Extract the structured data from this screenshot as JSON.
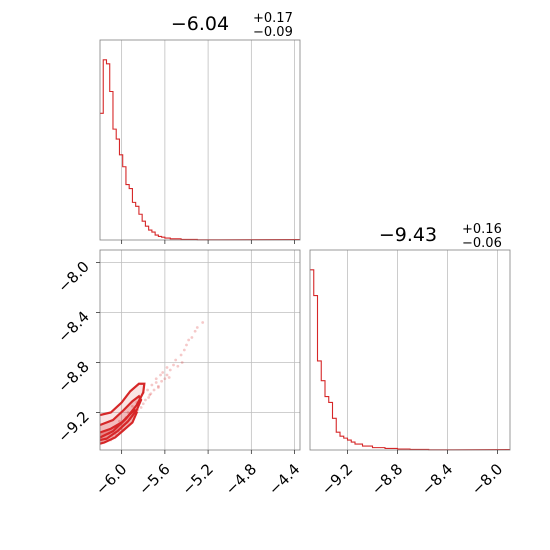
{
  "chart_data": [
    {
      "type": "histogram",
      "panel": "top-left",
      "title": {
        "value": "−6.04",
        "upper": "+0.17",
        "lower": "−0.09"
      },
      "xlim": [
        -6.2,
        -4.35
      ],
      "x_ticks": [
        -6.0,
        -5.6,
        -5.2,
        -4.8,
        -4.4
      ],
      "tick_labels_shown": false,
      "color": "#d62728",
      "bins": [
        {
          "x0": -6.2,
          "x1": -6.17,
          "count": 0.64
        },
        {
          "x0": -6.17,
          "x1": -6.14,
          "count": 0.91
        },
        {
          "x0": -6.14,
          "x1": -6.11,
          "count": 0.89
        },
        {
          "x0": -6.11,
          "x1": -6.08,
          "count": 0.75
        },
        {
          "x0": -6.08,
          "x1": -6.05,
          "count": 0.56
        },
        {
          "x0": -6.05,
          "x1": -6.02,
          "count": 0.51
        },
        {
          "x0": -6.02,
          "x1": -5.99,
          "count": 0.43
        },
        {
          "x0": -5.99,
          "x1": -5.96,
          "count": 0.37
        },
        {
          "x0": -5.96,
          "x1": -5.93,
          "count": 0.28
        },
        {
          "x0": -5.93,
          "x1": -5.9,
          "count": 0.26
        },
        {
          "x0": -5.9,
          "x1": -5.87,
          "count": 0.19
        },
        {
          "x0": -5.87,
          "x1": -5.84,
          "count": 0.17
        },
        {
          "x0": -5.84,
          "x1": -5.81,
          "count": 0.13
        },
        {
          "x0": -5.81,
          "x1": -5.78,
          "count": 0.095
        },
        {
          "x0": -5.78,
          "x1": -5.75,
          "count": 0.07
        },
        {
          "x0": -5.75,
          "x1": -5.72,
          "count": 0.05
        },
        {
          "x0": -5.72,
          "x1": -5.69,
          "count": 0.04
        },
        {
          "x0": -5.69,
          "x1": -5.66,
          "count": 0.025
        },
        {
          "x0": -5.66,
          "x1": -5.63,
          "count": 0.018
        },
        {
          "x0": -5.63,
          "x1": -5.6,
          "count": 0.014
        },
        {
          "x0": -5.6,
          "x1": -5.55,
          "count": 0.01
        },
        {
          "x0": -5.55,
          "x1": -5.45,
          "count": 0.006
        },
        {
          "x0": -5.45,
          "x1": -5.3,
          "count": 0.003
        },
        {
          "x0": -5.3,
          "x1": -5.1,
          "count": 0.001
        }
      ]
    },
    {
      "type": "histogram",
      "panel": "bottom-right",
      "title": {
        "value": "−9.43",
        "upper": "+0.16",
        "lower": "−0.06"
      },
      "xlim": [
        -9.5,
        -7.9
      ],
      "x_ticks": [
        -9.2,
        -8.8,
        -8.4,
        -8.0
      ],
      "tick_labels": [
        "−9.2",
        "−8.8",
        "−8.4",
        "−8.0"
      ],
      "color": "#d62728",
      "bins": [
        {
          "x0": -9.5,
          "x1": -9.47,
          "count": 0.91
        },
        {
          "x0": -9.47,
          "x1": -9.44,
          "count": 0.78
        },
        {
          "x0": -9.44,
          "x1": -9.41,
          "count": 0.45
        },
        {
          "x0": -9.41,
          "x1": -9.38,
          "count": 0.35
        },
        {
          "x0": -9.38,
          "x1": -9.35,
          "count": 0.27
        },
        {
          "x0": -9.35,
          "x1": -9.32,
          "count": 0.24
        },
        {
          "x0": -9.32,
          "x1": -9.29,
          "count": 0.16
        },
        {
          "x0": -9.29,
          "x1": -9.26,
          "count": 0.09
        },
        {
          "x0": -9.26,
          "x1": -9.23,
          "count": 0.07
        },
        {
          "x0": -9.23,
          "x1": -9.2,
          "count": 0.06
        },
        {
          "x0": -9.2,
          "x1": -9.17,
          "count": 0.05
        },
        {
          "x0": -9.17,
          "x1": -9.14,
          "count": 0.04
        },
        {
          "x0": -9.14,
          "x1": -9.08,
          "count": 0.03
        },
        {
          "x0": -9.08,
          "x1": -9.0,
          "count": 0.02
        },
        {
          "x0": -9.0,
          "x1": -8.9,
          "count": 0.012
        },
        {
          "x0": -8.9,
          "x1": -8.8,
          "count": 0.008
        },
        {
          "x0": -8.8,
          "x1": -8.7,
          "count": 0.005
        },
        {
          "x0": -8.7,
          "x1": -8.55,
          "count": 0.003
        },
        {
          "x0": -8.55,
          "x1": -8.35,
          "count": 0.001
        }
      ]
    },
    {
      "type": "scatter",
      "panel": "bottom-left",
      "subtype": "2d-density-contour",
      "xlim": [
        -6.2,
        -4.35
      ],
      "ylim": [
        -9.5,
        -7.9
      ],
      "x_ticks": [
        -6.0,
        -5.6,
        -5.2,
        -4.8,
        -4.4
      ],
      "x_tick_labels": [
        "−6.0",
        "−5.6",
        "−5.2",
        "−4.8",
        "−4.4"
      ],
      "y_ticks": [
        -9.2,
        -8.8,
        -8.4,
        -8.0
      ],
      "y_tick_labels": [
        "−9.2",
        "−8.8",
        "−8.4",
        "−8.0"
      ],
      "color": "#d62728",
      "points": [
        [
          -5.25,
          -8.48
        ],
        [
          -5.32,
          -8.55
        ],
        [
          -5.38,
          -8.62
        ],
        [
          -5.42,
          -8.7
        ],
        [
          -5.45,
          -8.74
        ],
        [
          -5.5,
          -8.78
        ],
        [
          -5.48,
          -8.83
        ],
        [
          -5.55,
          -8.86
        ],
        [
          -5.58,
          -8.9
        ],
        [
          -5.6,
          -8.93
        ],
        [
          -5.63,
          -8.95
        ],
        [
          -5.66,
          -8.99
        ],
        [
          -5.7,
          -9.02
        ],
        [
          -5.73,
          -9.05
        ],
        [
          -5.68,
          -8.93
        ],
        [
          -5.62,
          -8.88
        ],
        [
          -5.75,
          -9.08
        ],
        [
          -5.78,
          -9.1
        ],
        [
          -5.8,
          -9.13
        ],
        [
          -5.76,
          -9.02
        ],
        [
          -5.82,
          -9.16
        ],
        [
          -5.85,
          -9.18
        ],
        [
          -5.88,
          -9.2
        ],
        [
          -5.72,
          -8.98
        ],
        [
          -5.9,
          -9.23
        ],
        [
          -5.92,
          -9.25
        ],
        [
          -5.95,
          -9.28
        ],
        [
          -5.86,
          -9.12
        ],
        [
          -5.98,
          -9.3
        ],
        [
          -6.0,
          -9.33
        ],
        [
          -6.03,
          -9.35
        ],
        [
          -5.94,
          -9.2
        ],
        [
          -6.05,
          -9.38
        ],
        [
          -6.08,
          -9.4
        ],
        [
          -6.1,
          -9.42
        ],
        [
          -6.02,
          -9.27
        ],
        [
          -5.52,
          -8.82
        ],
        [
          -5.58,
          -8.84
        ],
        [
          -5.64,
          -8.9
        ],
        [
          -5.68,
          -8.96
        ],
        [
          -5.8,
          -9.04
        ],
        [
          -5.84,
          -9.08
        ],
        [
          -5.9,
          -9.15
        ],
        [
          -5.96,
          -9.24
        ],
        [
          -6.06,
          -9.32
        ],
        [
          -6.12,
          -9.37
        ],
        [
          -6.15,
          -9.41
        ],
        [
          -6.18,
          -9.44
        ],
        [
          -5.44,
          -8.8
        ],
        [
          -5.4,
          -8.66
        ],
        [
          -5.35,
          -8.6
        ],
        [
          -5.3,
          -8.52
        ],
        [
          -5.56,
          -8.92
        ],
        [
          -5.66,
          -9.0
        ],
        [
          -5.74,
          -9.06
        ],
        [
          -5.88,
          -9.17
        ]
      ],
      "contours": [
        [
          [
            -6.2,
            -9.36
          ],
          [
            -6.1,
            -9.33
          ],
          [
            -6.0,
            -9.28
          ],
          [
            -5.93,
            -9.22
          ],
          [
            -5.88,
            -9.18
          ],
          [
            -5.86,
            -9.2
          ],
          [
            -5.9,
            -9.28
          ],
          [
            -5.98,
            -9.34
          ],
          [
            -6.06,
            -9.4
          ],
          [
            -6.16,
            -9.44
          ],
          [
            -6.2,
            -9.45
          ]
        ],
        [
          [
            -6.2,
            -9.3
          ],
          [
            -6.08,
            -9.26
          ],
          [
            -5.98,
            -9.18
          ],
          [
            -5.9,
            -9.11
          ],
          [
            -5.84,
            -9.07
          ],
          [
            -5.82,
            -9.1
          ],
          [
            -5.86,
            -9.18
          ],
          [
            -5.94,
            -9.27
          ],
          [
            -6.04,
            -9.35
          ],
          [
            -6.14,
            -9.41
          ],
          [
            -6.2,
            -9.42
          ]
        ],
        [
          [
            -6.2,
            -9.22
          ],
          [
            -6.1,
            -9.2
          ],
          [
            -6.0,
            -9.12
          ],
          [
            -5.92,
            -9.03
          ],
          [
            -5.84,
            -8.97
          ],
          [
            -5.79,
            -8.97
          ],
          [
            -5.8,
            -9.04
          ],
          [
            -5.86,
            -9.14
          ],
          [
            -5.96,
            -9.25
          ],
          [
            -6.08,
            -9.35
          ],
          [
            -6.2,
            -9.4
          ]
        ]
      ]
    }
  ]
}
